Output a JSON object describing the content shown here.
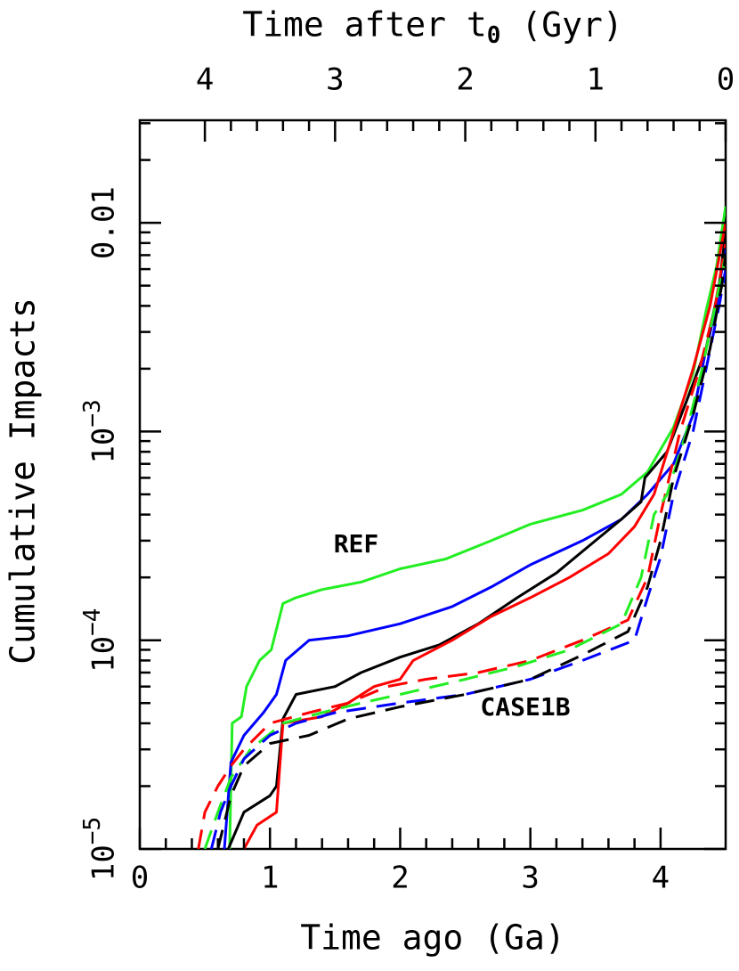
{
  "chart_data": {
    "type": "line",
    "xlabel": "Time ago (Ga)",
    "ylabel": "Cumulative Impacts",
    "x2label": "Time after t0 (Gyr)",
    "xlim": [
      0,
      4.5
    ],
    "xticks": [
      0,
      1,
      2,
      3,
      4
    ],
    "x2lim": [
      4.5,
      0
    ],
    "x2ticks": [
      0,
      1,
      2,
      3,
      4
    ],
    "ylim": [
      1e-05,
      0.031
    ],
    "ylog": true,
    "yticks": [
      {
        "value": 1e-05,
        "label": "10−5"
      },
      {
        "value": 0.0001,
        "label": "10−4"
      },
      {
        "value": 0.001,
        "label": "10−3"
      },
      0.01
    ],
    "annotations": [
      "REF",
      "CASE1B"
    ],
    "series": [
      {
        "color": "#22ee22",
        "style": "solid",
        "x": [
          0.69,
          0.71,
          0.78,
          0.82,
          0.92,
          1.01,
          1.1,
          1.2,
          1.4,
          1.7,
          2.0,
          2.35,
          2.7,
          3.0,
          3.4,
          3.7,
          3.9,
          4.1,
          4.25,
          4.35,
          4.43,
          4.5
        ],
        "values": [
          1e-05,
          4e-05,
          4.3e-05,
          6e-05,
          8e-05,
          9e-05,
          0.00015,
          0.00016,
          0.000175,
          0.00019,
          0.00022,
          0.000245,
          0.0003,
          0.00036,
          0.00042,
          0.0005,
          0.00064,
          0.00105,
          0.0019,
          0.0038,
          0.0062,
          0.012
        ]
      },
      {
        "color": "#0000ff",
        "style": "solid",
        "x": [
          0.65,
          0.7,
          0.8,
          0.95,
          1.05,
          1.12,
          1.3,
          1.6,
          2.0,
          2.4,
          2.7,
          3.0,
          3.4,
          3.7,
          3.9,
          4.1,
          4.25,
          4.35,
          4.43,
          4.5
        ],
        "values": [
          1e-05,
          2.6e-05,
          3.5e-05,
          4.5e-05,
          5.5e-05,
          8e-05,
          0.0001,
          0.000105,
          0.00012,
          0.000145,
          0.00018,
          0.00023,
          0.0003,
          0.00038,
          0.0005,
          0.0007,
          0.0012,
          0.0025,
          0.004,
          0.008
        ]
      },
      {
        "color": "#000000",
        "style": "solid",
        "x": [
          0.68,
          0.8,
          1.0,
          1.05,
          1.1,
          1.2,
          1.5,
          1.7,
          2.0,
          2.3,
          2.6,
          2.9,
          3.2,
          3.5,
          3.7,
          3.85,
          3.88,
          4.05,
          4.2,
          4.35,
          4.45,
          4.5
        ],
        "values": [
          1e-05,
          1.5e-05,
          1.8e-05,
          2e-05,
          4.2e-05,
          5.5e-05,
          6e-05,
          7e-05,
          8.3e-05,
          9.5e-05,
          0.00012,
          0.00016,
          0.00021,
          0.0003,
          0.00038,
          0.00046,
          0.0006,
          0.0008,
          0.0014,
          0.0025,
          0.005,
          0.009
        ]
      },
      {
        "color": "#ff0000",
        "style": "solid",
        "x": [
          0.8,
          0.9,
          1.05,
          1.1,
          1.4,
          1.6,
          1.8,
          2.0,
          2.1,
          2.4,
          2.7,
          3.0,
          3.3,
          3.6,
          3.8,
          3.95,
          4.1,
          4.25,
          4.38,
          4.5
        ],
        "values": [
          1e-05,
          1.3e-05,
          1.5e-05,
          4e-05,
          4.3e-05,
          5e-05,
          6e-05,
          6.5e-05,
          8e-05,
          0.0001,
          0.00013,
          0.00016,
          0.0002,
          0.00026,
          0.00035,
          0.0005,
          0.001,
          0.002,
          0.004,
          0.01
        ]
      },
      {
        "color": "#ff0000",
        "style": "dashed",
        "x": [
          0.45,
          0.5,
          0.6,
          0.7,
          0.8,
          1.0,
          1.3,
          1.6,
          1.9,
          2.2,
          2.6,
          3.0,
          3.4,
          3.75,
          3.9,
          4.0,
          4.15,
          4.3,
          4.42,
          4.5
        ],
        "values": [
          1e-05,
          1.5e-05,
          2e-05,
          2.5e-05,
          3e-05,
          4e-05,
          4.5e-05,
          5e-05,
          6e-05,
          6.5e-05,
          7e-05,
          8e-05,
          0.0001,
          0.000125,
          0.0002,
          0.0004,
          0.001,
          0.002,
          0.004,
          0.008
        ]
      },
      {
        "color": "#22ee22",
        "style": "dashed",
        "x": [
          0.5,
          0.6,
          0.7,
          0.85,
          1.1,
          1.4,
          1.7,
          2.0,
          2.5,
          2.9,
          3.3,
          3.7,
          3.85,
          3.95,
          4.05,
          4.2,
          4.32,
          4.42,
          4.5
        ],
        "values": [
          1e-05,
          1.5e-05,
          2.2e-05,
          3e-05,
          4e-05,
          4.5e-05,
          5e-05,
          5.5e-05,
          6.5e-05,
          7.5e-05,
          9e-05,
          0.00012,
          0.0002,
          0.0004,
          0.0005,
          0.001,
          0.002,
          0.004,
          0.007
        ]
      },
      {
        "color": "#0000ff",
        "style": "dashed",
        "x": [
          0.55,
          0.62,
          0.7,
          0.8,
          1.0,
          1.2,
          1.5,
          2.0,
          2.5,
          3.0,
          3.4,
          3.8,
          3.9,
          4.0,
          4.1,
          4.25,
          4.35,
          4.45,
          4.5
        ],
        "values": [
          1e-05,
          1.5e-05,
          2e-05,
          2.7e-05,
          3.5e-05,
          4e-05,
          4.5e-05,
          5e-05,
          5.5e-05,
          6.5e-05,
          8e-05,
          0.0001,
          0.00016,
          0.00025,
          0.0005,
          0.001,
          0.002,
          0.004,
          0.006
        ]
      },
      {
        "color": "#000000",
        "style": "dashed",
        "x": [
          0.6,
          0.7,
          0.8,
          1.0,
          1.3,
          1.6,
          2.0,
          2.5,
          3.0,
          3.4,
          3.75,
          3.9,
          4.0,
          4.1,
          4.25,
          4.38,
          4.47,
          4.5
        ],
        "values": [
          1e-05,
          1.8e-05,
          2.5e-05,
          3.2e-05,
          3.5e-05,
          4.2e-05,
          4.8e-05,
          5.5e-05,
          6.5e-05,
          8.5e-05,
          0.00011,
          0.00018,
          0.0003,
          0.0006,
          0.0012,
          0.0025,
          0.005,
          0.007
        ]
      }
    ]
  }
}
